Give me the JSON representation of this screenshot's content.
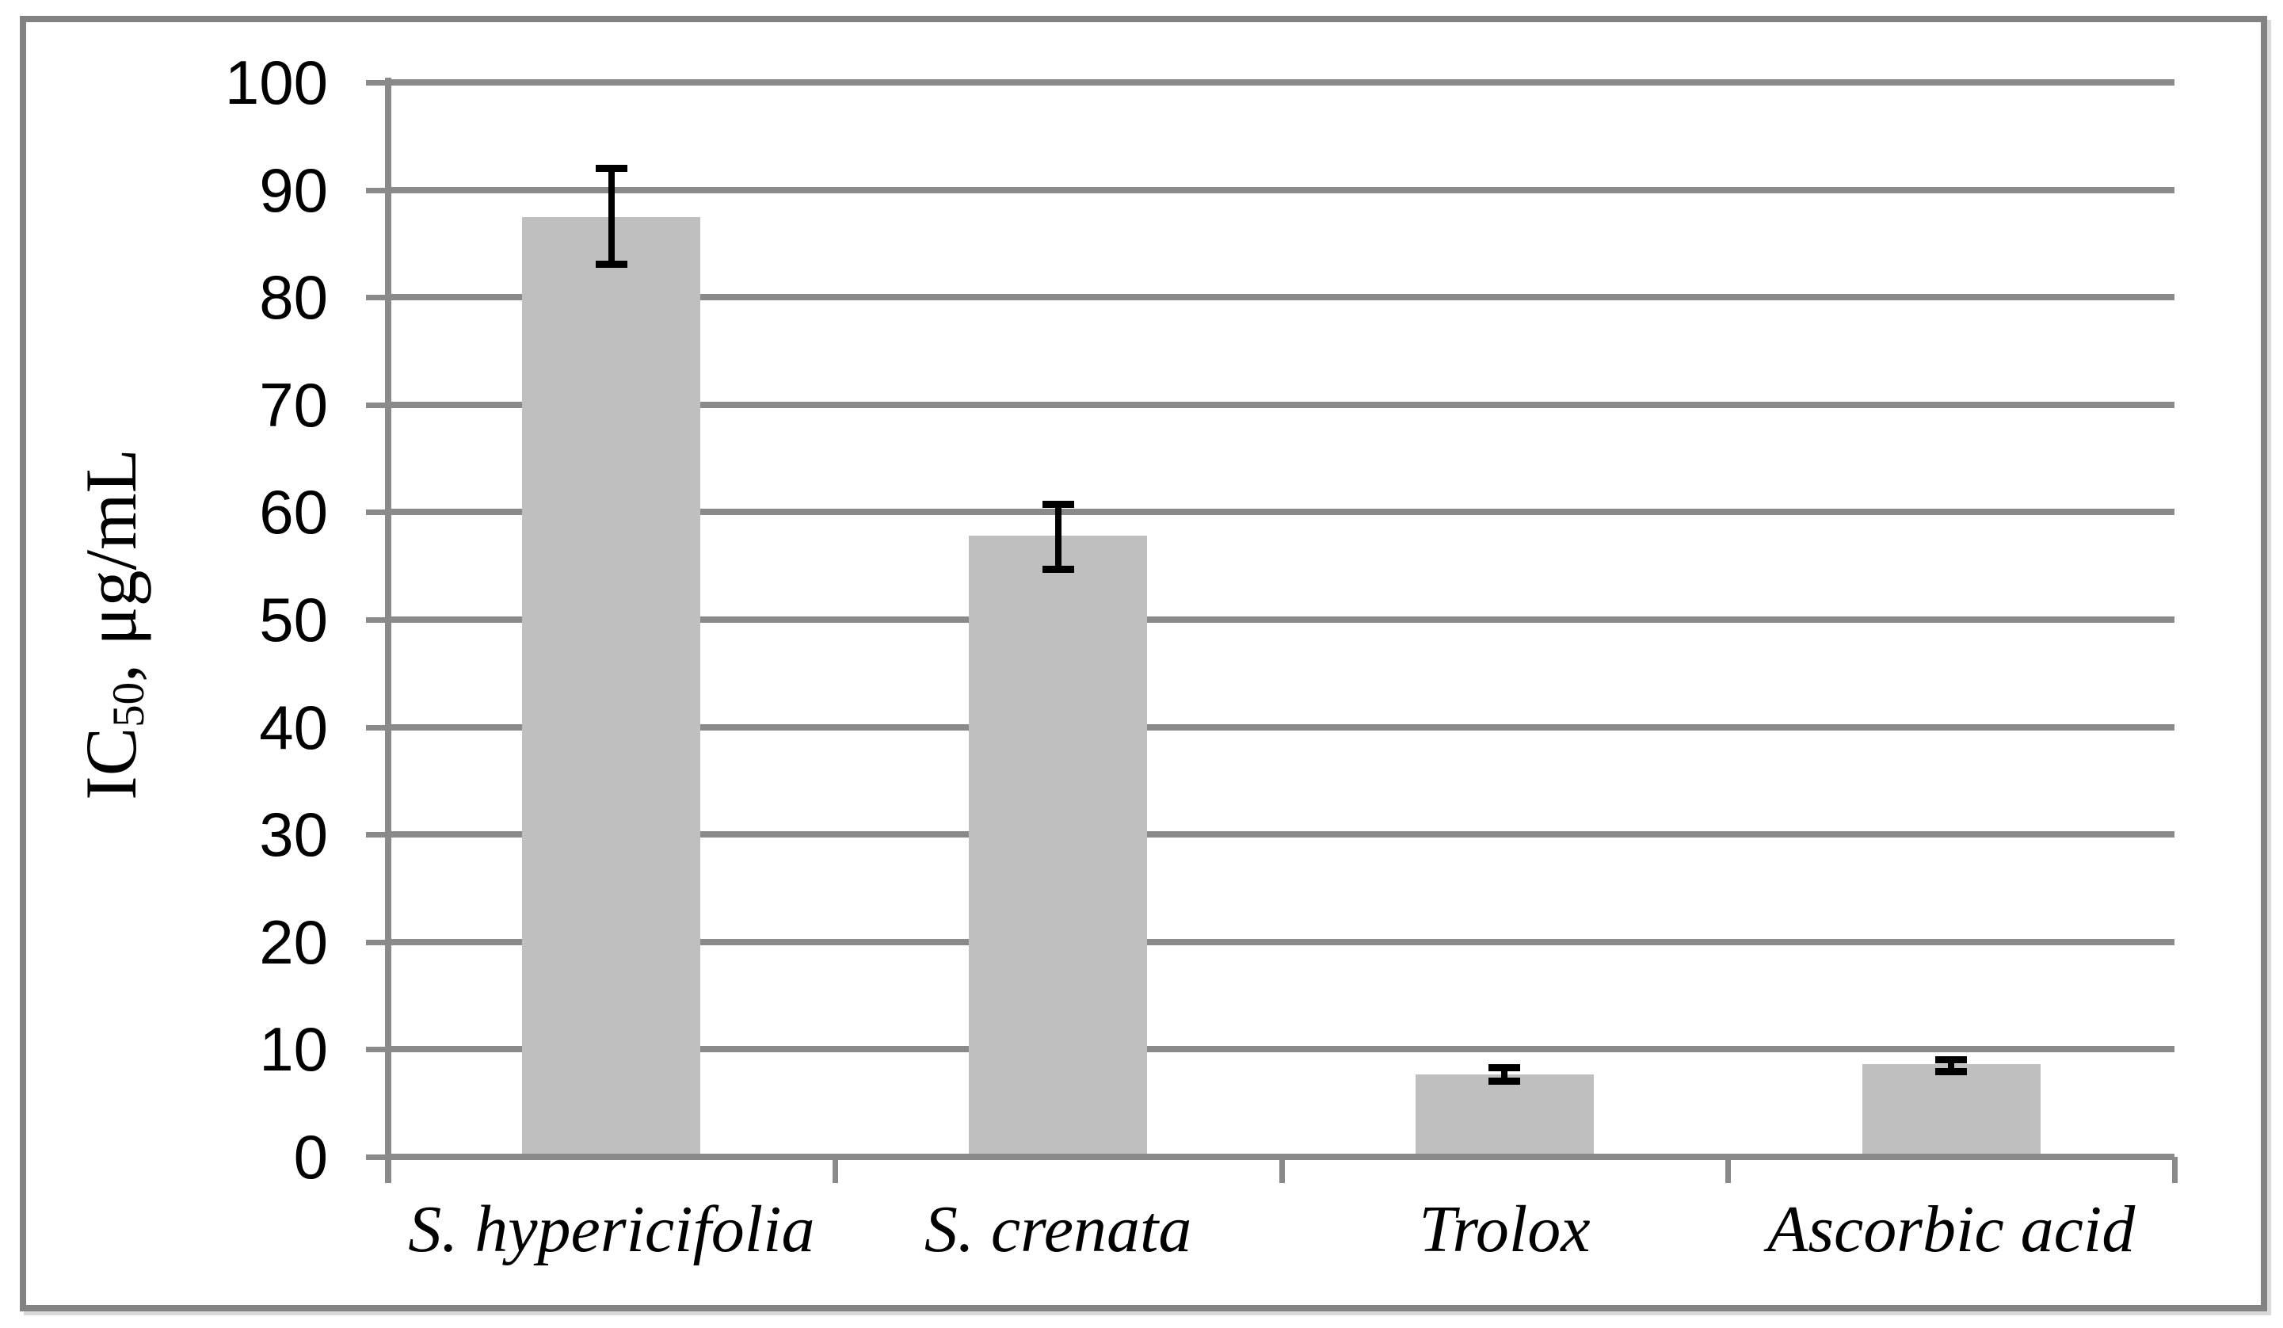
{
  "chart_data": {
    "type": "bar",
    "title": "",
    "xlabel": "",
    "ylabel": "IC50, μg/mL",
    "ylabel_parts": {
      "prefix": "IC",
      "sub": "50",
      "suffix": ", μg/mL"
    },
    "ylim": [
      0,
      100
    ],
    "yticks": [
      0,
      10,
      20,
      30,
      40,
      50,
      60,
      70,
      80,
      90,
      100
    ],
    "categories": [
      "S. hypericifolia",
      "S. crenata",
      "Trolox",
      "Ascorbic acid"
    ],
    "values": [
      87.5,
      57.8,
      7.7,
      8.6
    ],
    "error_low": [
      83.1,
      54.7,
      7.1,
      8.0
    ],
    "error_high": [
      92.0,
      60.8,
      8.3,
      9.1
    ],
    "grid": "horizontal",
    "legend": false,
    "colors": {
      "bar_fill": "#bfbfbf",
      "gridline": "#8a8a8a",
      "axis": "#8a8a8a",
      "error_bar": "#000000",
      "frame_border": "#828282",
      "text": "#000000",
      "background": "#ffffff"
    }
  }
}
